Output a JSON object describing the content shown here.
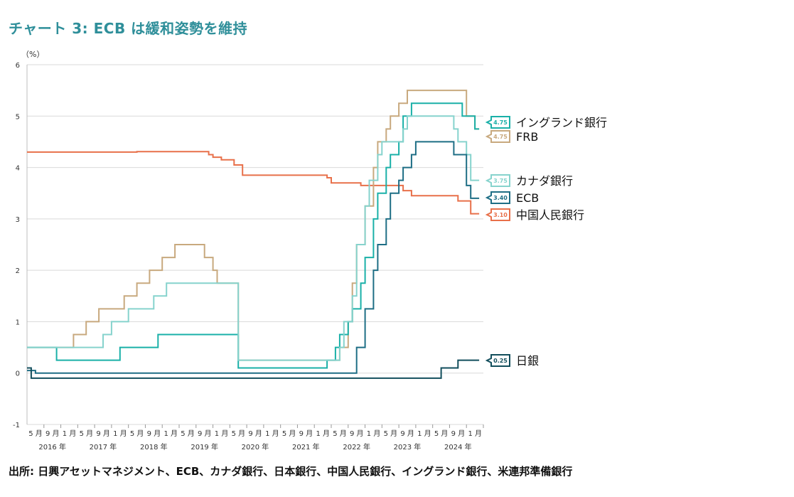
{
  "title": "チャート 3: ECB は緩和姿勢を維持",
  "source": "出所: 日興アセットマネジメント、ECB、カナダ銀行、日本銀行、中国人民銀行、イングランド銀行、米連邦準備銀行",
  "chart_data": {
    "type": "line",
    "title": "チャート 3: ECB は緩和姿勢を維持",
    "ylabel": "（%）",
    "ylim": [
      -1,
      6
    ],
    "yticks": [
      -1,
      0,
      1,
      2,
      3,
      4,
      5,
      6
    ],
    "xlim": [
      "2016-01",
      "2025-01"
    ],
    "month_ticks": [
      {
        "x": "2016-05",
        "label": "5 月"
      },
      {
        "x": "2016-09",
        "label": "9 月"
      },
      {
        "x": "2017-01",
        "label": "1 月"
      },
      {
        "x": "2017-05",
        "label": "5 月"
      },
      {
        "x": "2017-09",
        "label": "9 月"
      },
      {
        "x": "2018-01",
        "label": "1 月"
      },
      {
        "x": "2018-05",
        "label": "5 月"
      },
      {
        "x": "2018-09",
        "label": "9 月"
      },
      {
        "x": "2019-01",
        "label": "1 月"
      },
      {
        "x": "2019-05",
        "label": "5 月"
      },
      {
        "x": "2019-09",
        "label": "9 月"
      },
      {
        "x": "2020-01",
        "label": "1 月"
      },
      {
        "x": "2020-05",
        "label": "5 月"
      },
      {
        "x": "2020-09",
        "label": "9 月"
      },
      {
        "x": "2021-01",
        "label": "1 月"
      },
      {
        "x": "2021-05",
        "label": "5 月"
      },
      {
        "x": "2021-09",
        "label": "9 月"
      },
      {
        "x": "2022-01",
        "label": "1 月"
      },
      {
        "x": "2022-05",
        "label": "5 月"
      },
      {
        "x": "2022-09",
        "label": "9 月"
      },
      {
        "x": "2023-01",
        "label": "1 月"
      },
      {
        "x": "2023-05",
        "label": "5 月"
      },
      {
        "x": "2023-09",
        "label": "9 月"
      },
      {
        "x": "2024-01",
        "label": "1 月"
      },
      {
        "x": "2024-05",
        "label": "5 月"
      },
      {
        "x": "2024-09",
        "label": "9 月"
      },
      {
        "x": "2025-01",
        "label": "1 月"
      }
    ],
    "year_labels": [
      {
        "x": "2016-07",
        "label": "2016 年"
      },
      {
        "x": "2017-07",
        "label": "2017 年"
      },
      {
        "x": "2018-07",
        "label": "2018 年"
      },
      {
        "x": "2019-07",
        "label": "2019 年"
      },
      {
        "x": "2020-07",
        "label": "2020 年"
      },
      {
        "x": "2021-07",
        "label": "2021 年"
      },
      {
        "x": "2022-07",
        "label": "2022 年"
      },
      {
        "x": "2023-07",
        "label": "2023 年"
      },
      {
        "x": "2024-07",
        "label": "2024 年"
      }
    ],
    "series": [
      {
        "name": "中国人民銀行",
        "color": "#e8704a",
        "end_value": "3.10",
        "points": [
          [
            "2016-01",
            4.3
          ],
          [
            "2018-03",
            4.3
          ],
          [
            "2018-03",
            4.31
          ],
          [
            "2019-08",
            4.31
          ],
          [
            "2019-08",
            4.25
          ],
          [
            "2019-09",
            4.25
          ],
          [
            "2019-09",
            4.2
          ],
          [
            "2019-11",
            4.2
          ],
          [
            "2019-11",
            4.15
          ],
          [
            "2020-02",
            4.15
          ],
          [
            "2020-02",
            4.05
          ],
          [
            "2020-04",
            4.05
          ],
          [
            "2020-04",
            3.85
          ],
          [
            "2021-12",
            3.85
          ],
          [
            "2021-12",
            3.8
          ],
          [
            "2022-01",
            3.8
          ],
          [
            "2022-01",
            3.7
          ],
          [
            "2022-08",
            3.7
          ],
          [
            "2022-08",
            3.65
          ],
          [
            "2023-06",
            3.65
          ],
          [
            "2023-06",
            3.55
          ],
          [
            "2023-08",
            3.55
          ],
          [
            "2023-08",
            3.45
          ],
          [
            "2024-07",
            3.45
          ],
          [
            "2024-07",
            3.35
          ],
          [
            "2024-10",
            3.35
          ],
          [
            "2024-10",
            3.1
          ],
          [
            "2024-12",
            3.1
          ]
        ]
      },
      {
        "name": "FRB",
        "color": "#c8a97e",
        "end_value": "4.75",
        "points": [
          [
            "2016-01",
            0.5
          ],
          [
            "2016-12",
            0.5
          ],
          [
            "2016-12",
            0.75
          ],
          [
            "2017-03",
            0.75
          ],
          [
            "2017-03",
            1.0
          ],
          [
            "2017-06",
            1.0
          ],
          [
            "2017-06",
            1.25
          ],
          [
            "2017-12",
            1.25
          ],
          [
            "2017-12",
            1.5
          ],
          [
            "2018-03",
            1.5
          ],
          [
            "2018-03",
            1.75
          ],
          [
            "2018-06",
            1.75
          ],
          [
            "2018-06",
            2.0
          ],
          [
            "2018-09",
            2.0
          ],
          [
            "2018-09",
            2.25
          ],
          [
            "2018-12",
            2.25
          ],
          [
            "2018-12",
            2.5
          ],
          [
            "2019-07",
            2.5
          ],
          [
            "2019-07",
            2.25
          ],
          [
            "2019-09",
            2.25
          ],
          [
            "2019-09",
            2.0
          ],
          [
            "2019-10",
            2.0
          ],
          [
            "2019-10",
            1.75
          ],
          [
            "2020-03",
            1.75
          ],
          [
            "2020-03",
            1.25
          ],
          [
            "2020-03",
            0.25
          ],
          [
            "2022-03",
            0.25
          ],
          [
            "2022-03",
            0.5
          ],
          [
            "2022-05",
            0.5
          ],
          [
            "2022-05",
            1.0
          ],
          [
            "2022-06",
            1.0
          ],
          [
            "2022-06",
            1.75
          ],
          [
            "2022-07",
            1.75
          ],
          [
            "2022-07",
            2.5
          ],
          [
            "2022-09",
            2.5
          ],
          [
            "2022-09",
            3.25
          ],
          [
            "2022-11",
            3.25
          ],
          [
            "2022-11",
            4.0
          ],
          [
            "2022-12",
            4.0
          ],
          [
            "2022-12",
            4.5
          ],
          [
            "2023-02",
            4.5
          ],
          [
            "2023-02",
            4.75
          ],
          [
            "2023-03",
            4.75
          ],
          [
            "2023-03",
            5.0
          ],
          [
            "2023-05",
            5.0
          ],
          [
            "2023-05",
            5.25
          ],
          [
            "2023-07",
            5.25
          ],
          [
            "2023-07",
            5.5
          ],
          [
            "2024-09",
            5.5
          ],
          [
            "2024-09",
            5.0
          ],
          [
            "2024-11",
            5.0
          ],
          [
            "2024-11",
            4.75
          ],
          [
            "2024-12",
            4.75
          ]
        ]
      },
      {
        "name": "イングランド銀行",
        "color": "#1ab0a8",
        "end_value": "4.75",
        "points": [
          [
            "2016-01",
            0.5
          ],
          [
            "2016-08",
            0.5
          ],
          [
            "2016-08",
            0.25
          ],
          [
            "2017-11",
            0.25
          ],
          [
            "2017-11",
            0.5
          ],
          [
            "2018-08",
            0.5
          ],
          [
            "2018-08",
            0.75
          ],
          [
            "2020-03",
            0.75
          ],
          [
            "2020-03",
            0.25
          ],
          [
            "2020-03",
            0.1
          ],
          [
            "2021-12",
            0.1
          ],
          [
            "2021-12",
            0.25
          ],
          [
            "2022-02",
            0.25
          ],
          [
            "2022-02",
            0.5
          ],
          [
            "2022-03",
            0.5
          ],
          [
            "2022-03",
            0.75
          ],
          [
            "2022-05",
            0.75
          ],
          [
            "2022-05",
            1.0
          ],
          [
            "2022-06",
            1.0
          ],
          [
            "2022-06",
            1.25
          ],
          [
            "2022-08",
            1.25
          ],
          [
            "2022-08",
            1.75
          ],
          [
            "2022-09",
            1.75
          ],
          [
            "2022-09",
            2.25
          ],
          [
            "2022-11",
            2.25
          ],
          [
            "2022-11",
            3.0
          ],
          [
            "2022-12",
            3.0
          ],
          [
            "2022-12",
            3.5
          ],
          [
            "2023-02",
            3.5
          ],
          [
            "2023-02",
            4.0
          ],
          [
            "2023-03",
            4.0
          ],
          [
            "2023-03",
            4.25
          ],
          [
            "2023-05",
            4.25
          ],
          [
            "2023-05",
            4.5
          ],
          [
            "2023-06",
            4.5
          ],
          [
            "2023-06",
            5.0
          ],
          [
            "2023-08",
            5.0
          ],
          [
            "2023-08",
            5.25
          ],
          [
            "2024-08",
            5.25
          ],
          [
            "2024-08",
            5.0
          ],
          [
            "2024-11",
            5.0
          ],
          [
            "2024-11",
            4.75
          ],
          [
            "2024-12",
            4.75
          ]
        ]
      },
      {
        "name": "カナダ銀行",
        "color": "#86d3cd",
        "end_value": "3.75",
        "points": [
          [
            "2016-01",
            0.5
          ],
          [
            "2017-07",
            0.5
          ],
          [
            "2017-07",
            0.75
          ],
          [
            "2017-09",
            0.75
          ],
          [
            "2017-09",
            1.0
          ],
          [
            "2018-01",
            1.0
          ],
          [
            "2018-01",
            1.25
          ],
          [
            "2018-07",
            1.25
          ],
          [
            "2018-07",
            1.5
          ],
          [
            "2018-10",
            1.5
          ],
          [
            "2018-10",
            1.75
          ],
          [
            "2020-03",
            1.75
          ],
          [
            "2020-03",
            1.25
          ],
          [
            "2020-03",
            0.75
          ],
          [
            "2020-03",
            0.25
          ],
          [
            "2022-03",
            0.25
          ],
          [
            "2022-03",
            0.5
          ],
          [
            "2022-04",
            0.5
          ],
          [
            "2022-04",
            1.0
          ],
          [
            "2022-06",
            1.0
          ],
          [
            "2022-06",
            1.5
          ],
          [
            "2022-07",
            1.5
          ],
          [
            "2022-07",
            2.5
          ],
          [
            "2022-09",
            2.5
          ],
          [
            "2022-09",
            3.25
          ],
          [
            "2022-10",
            3.25
          ],
          [
            "2022-10",
            3.75
          ],
          [
            "2022-12",
            3.75
          ],
          [
            "2022-12",
            4.25
          ],
          [
            "2023-01",
            4.25
          ],
          [
            "2023-01",
            4.5
          ],
          [
            "2023-06",
            4.5
          ],
          [
            "2023-06",
            4.75
          ],
          [
            "2023-07",
            4.75
          ],
          [
            "2023-07",
            5.0
          ],
          [
            "2024-06",
            5.0
          ],
          [
            "2024-06",
            4.75
          ],
          [
            "2024-07",
            4.75
          ],
          [
            "2024-07",
            4.5
          ],
          [
            "2024-09",
            4.5
          ],
          [
            "2024-09",
            4.25
          ],
          [
            "2024-10",
            4.25
          ],
          [
            "2024-10",
            3.75
          ],
          [
            "2024-12",
            3.75
          ]
        ]
      },
      {
        "name": "ECB",
        "color": "#1e6e85",
        "end_value": "3.40",
        "points": [
          [
            "2016-01",
            0.05
          ],
          [
            "2016-03",
            0.05
          ],
          [
            "2016-03",
            0.0
          ],
          [
            "2022-07",
            0.0
          ],
          [
            "2022-07",
            0.5
          ],
          [
            "2022-09",
            0.5
          ],
          [
            "2022-09",
            1.25
          ],
          [
            "2022-11",
            1.25
          ],
          [
            "2022-11",
            2.0
          ],
          [
            "2022-12",
            2.0
          ],
          [
            "2022-12",
            2.5
          ],
          [
            "2023-02",
            2.5
          ],
          [
            "2023-02",
            3.0
          ],
          [
            "2023-03",
            3.0
          ],
          [
            "2023-03",
            3.5
          ],
          [
            "2023-05",
            3.5
          ],
          [
            "2023-05",
            3.75
          ],
          [
            "2023-06",
            3.75
          ],
          [
            "2023-06",
            4.0
          ],
          [
            "2023-08",
            4.0
          ],
          [
            "2023-08",
            4.25
          ],
          [
            "2023-09",
            4.25
          ],
          [
            "2023-09",
            4.5
          ],
          [
            "2024-06",
            4.5
          ],
          [
            "2024-06",
            4.25
          ],
          [
            "2024-09",
            4.25
          ],
          [
            "2024-09",
            3.65
          ],
          [
            "2024-10",
            3.65
          ],
          [
            "2024-10",
            3.4
          ],
          [
            "2024-12",
            3.4
          ]
        ]
      },
      {
        "name": "日銀",
        "color": "#124e5c",
        "end_value": "0.25",
        "points": [
          [
            "2016-01",
            0.1
          ],
          [
            "2016-02",
            0.1
          ],
          [
            "2016-02",
            -0.1
          ],
          [
            "2024-03",
            -0.1
          ],
          [
            "2024-03",
            0.1
          ],
          [
            "2024-07",
            0.1
          ],
          [
            "2024-07",
            0.25
          ],
          [
            "2024-12",
            0.25
          ]
        ]
      }
    ],
    "legend": [
      {
        "series": "イングランド銀行",
        "label": "イングランド銀行",
        "value": "4.75"
      },
      {
        "series": "FRB",
        "label": "FRB",
        "value": "4.75"
      },
      {
        "series": "カナダ銀行",
        "label": "カナダ銀行",
        "value": "3.75"
      },
      {
        "series": "ECB",
        "label": "ECB",
        "value": "3.40"
      },
      {
        "series": "中国人民銀行",
        "label": "中国人民銀行",
        "value": "3.10"
      },
      {
        "series": "日銀",
        "label": "日銀",
        "value": "0.25"
      }
    ]
  }
}
